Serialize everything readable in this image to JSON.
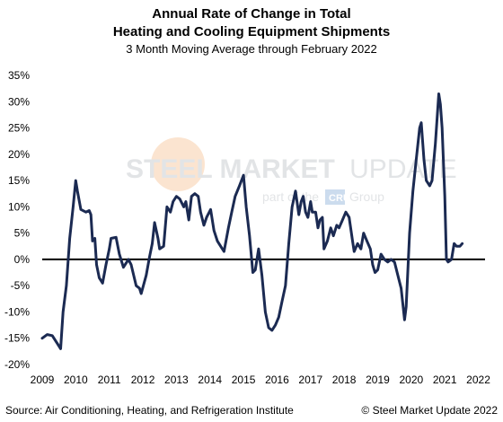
{
  "title_line1": "Annual Rate of Change in Total",
  "title_line2": "Heating and Cooling Equipment Shipments",
  "subtitle": "3 Month Moving Average through February 2022",
  "watermark": {
    "line1_bold": "STEEL MARKET",
    "line1_light": "UPDATE",
    "line2_prefix": "part of the",
    "line2_badge": "CRU",
    "line2_suffix": "Group"
  },
  "source": "Source: Air Conditioning, Heating, and Refrigeration Institute",
  "copyright": "© Steel Market Update 2022",
  "colors": {
    "line": "#1b2a52",
    "zero_line": "#000000",
    "axis_text": "#000000"
  },
  "chart_data": {
    "type": "line",
    "title": "Annual Rate of Change in Total Heating and Cooling Equipment Shipments",
    "subtitle": "3 Month Moving Average through February 2022",
    "xlabel": "",
    "ylabel": "",
    "xlim": [
      2009,
      2022.2
    ],
    "ylim": [
      -20,
      35
    ],
    "yticks": [
      -20,
      -15,
      -10,
      -5,
      0,
      5,
      10,
      15,
      20,
      25,
      30,
      35
    ],
    "ytick_labels": [
      "-20%",
      "-15%",
      "-10%",
      "-5%",
      "0%",
      "5%",
      "10%",
      "15%",
      "20%",
      "25%",
      "30%",
      "35%"
    ],
    "xticks": [
      2009,
      2010,
      2011,
      2012,
      2013,
      2014,
      2015,
      2016,
      2017,
      2018,
      2019,
      2020,
      2021,
      2022
    ],
    "xtick_labels": [
      "2009",
      "2010",
      "2011",
      "2012",
      "2013",
      "2014",
      "2015",
      "2016",
      "2017",
      "2018",
      "2019",
      "2020",
      "2021",
      "2022"
    ],
    "grid": false,
    "legend": "none",
    "series": [
      {
        "points": [
          [
            2009.0,
            -15.0
          ],
          [
            2009.15,
            -14.3
          ],
          [
            2009.3,
            -14.5
          ],
          [
            2009.45,
            -16.0
          ],
          [
            2009.55,
            -17.0
          ],
          [
            2009.62,
            -10.0
          ],
          [
            2009.72,
            -5.0
          ],
          [
            2009.82,
            4.0
          ],
          [
            2009.92,
            10.0
          ],
          [
            2010.0,
            15.0
          ],
          [
            2010.05,
            13.0
          ],
          [
            2010.15,
            9.5
          ],
          [
            2010.3,
            9.0
          ],
          [
            2010.4,
            9.3
          ],
          [
            2010.45,
            8.5
          ],
          [
            2010.5,
            3.5
          ],
          [
            2010.57,
            4.0
          ],
          [
            2010.62,
            -1.0
          ],
          [
            2010.7,
            -3.5
          ],
          [
            2010.8,
            -4.5
          ],
          [
            2010.9,
            -1.0
          ],
          [
            2011.0,
            2.0
          ],
          [
            2011.05,
            4.0
          ],
          [
            2011.2,
            4.2
          ],
          [
            2011.3,
            1.0
          ],
          [
            2011.42,
            -1.5
          ],
          [
            2011.57,
            0.0
          ],
          [
            2011.65,
            -1.0
          ],
          [
            2011.8,
            -5.0
          ],
          [
            2011.9,
            -5.5
          ],
          [
            2011.95,
            -6.5
          ],
          [
            2012.1,
            -3.0
          ],
          [
            2012.2,
            0.5
          ],
          [
            2012.28,
            3.0
          ],
          [
            2012.35,
            7.0
          ],
          [
            2012.45,
            4.0
          ],
          [
            2012.5,
            2.0
          ],
          [
            2012.62,
            2.5
          ],
          [
            2012.72,
            10.0
          ],
          [
            2012.82,
            9.0
          ],
          [
            2012.9,
            11.0
          ],
          [
            2013.0,
            12.0
          ],
          [
            2013.1,
            11.5
          ],
          [
            2013.22,
            10.0
          ],
          [
            2013.28,
            11.0
          ],
          [
            2013.37,
            7.5
          ],
          [
            2013.45,
            12.0
          ],
          [
            2013.55,
            12.5
          ],
          [
            2013.65,
            12.0
          ],
          [
            2013.72,
            9.0
          ],
          [
            2013.82,
            6.5
          ],
          [
            2013.9,
            8.0
          ],
          [
            2014.02,
            9.5
          ],
          [
            2014.12,
            5.5
          ],
          [
            2014.22,
            3.5
          ],
          [
            2014.32,
            2.5
          ],
          [
            2014.42,
            1.5
          ],
          [
            2014.55,
            6.0
          ],
          [
            2014.65,
            9.0
          ],
          [
            2014.75,
            12.0
          ],
          [
            2014.88,
            14.0
          ],
          [
            2015.0,
            16.0
          ],
          [
            2015.08,
            10.0
          ],
          [
            2015.18,
            4.5
          ],
          [
            2015.28,
            -2.5
          ],
          [
            2015.35,
            -2.0
          ],
          [
            2015.45,
            2.0
          ],
          [
            2015.55,
            -3.0
          ],
          [
            2015.65,
            -10.0
          ],
          [
            2015.75,
            -13.0
          ],
          [
            2015.85,
            -13.5
          ],
          [
            2015.95,
            -12.5
          ],
          [
            2016.05,
            -11.0
          ],
          [
            2016.15,
            -8.0
          ],
          [
            2016.25,
            -5.0
          ],
          [
            2016.35,
            3.0
          ],
          [
            2016.45,
            10.0
          ],
          [
            2016.55,
            13.0
          ],
          [
            2016.65,
            8.5
          ],
          [
            2016.72,
            11.0
          ],
          [
            2016.78,
            12.0
          ],
          [
            2016.85,
            9.0
          ],
          [
            2016.92,
            8.0
          ],
          [
            2017.0,
            11.0
          ],
          [
            2017.05,
            9.0
          ],
          [
            2017.15,
            9.0
          ],
          [
            2017.22,
            6.0
          ],
          [
            2017.28,
            7.5
          ],
          [
            2017.35,
            8.0
          ],
          [
            2017.4,
            2.0
          ],
          [
            2017.5,
            3.5
          ],
          [
            2017.6,
            6.0
          ],
          [
            2017.68,
            4.5
          ],
          [
            2017.78,
            6.5
          ],
          [
            2017.85,
            6.0
          ],
          [
            2017.95,
            7.5
          ],
          [
            2018.05,
            9.0
          ],
          [
            2018.15,
            8.0
          ],
          [
            2018.25,
            3.5
          ],
          [
            2018.3,
            1.5
          ],
          [
            2018.4,
            3.0
          ],
          [
            2018.5,
            2.0
          ],
          [
            2018.58,
            5.0
          ],
          [
            2018.68,
            3.5
          ],
          [
            2018.78,
            2.0
          ],
          [
            2018.85,
            -1.0
          ],
          [
            2018.92,
            -2.5
          ],
          [
            2019.0,
            -2.0
          ],
          [
            2019.1,
            1.0
          ],
          [
            2019.2,
            0.0
          ],
          [
            2019.3,
            -0.5
          ],
          [
            2019.4,
            0.0
          ],
          [
            2019.5,
            -0.5
          ],
          [
            2019.6,
            -3.0
          ],
          [
            2019.7,
            -5.5
          ],
          [
            2019.75,
            -8.5
          ],
          [
            2019.8,
            -11.5
          ],
          [
            2019.85,
            -9.0
          ],
          [
            2019.95,
            5.0
          ],
          [
            2020.05,
            13.0
          ],
          [
            2020.15,
            19.0
          ],
          [
            2020.25,
            25.0
          ],
          [
            2020.3,
            26.0
          ],
          [
            2020.38,
            19.0
          ],
          [
            2020.45,
            15.0
          ],
          [
            2020.55,
            14.0
          ],
          [
            2020.62,
            15.0
          ],
          [
            2020.72,
            22.0
          ],
          [
            2020.82,
            31.5
          ],
          [
            2020.87,
            29.5
          ],
          [
            2020.92,
            25.0
          ],
          [
            2021.0,
            12.0
          ],
          [
            2021.05,
            0.0
          ],
          [
            2021.1,
            -0.5
          ],
          [
            2021.2,
            0.0
          ],
          [
            2021.28,
            3.0
          ],
          [
            2021.35,
            2.5
          ],
          [
            2021.45,
            2.5
          ],
          [
            2021.52,
            3.0
          ]
        ]
      }
    ]
  }
}
